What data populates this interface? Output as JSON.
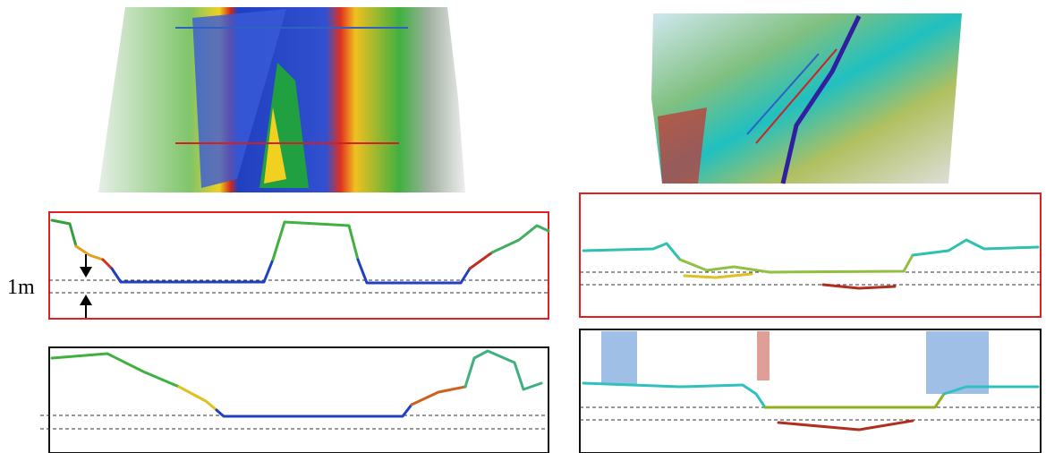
{
  "annotation": {
    "label": "1m"
  }
}
